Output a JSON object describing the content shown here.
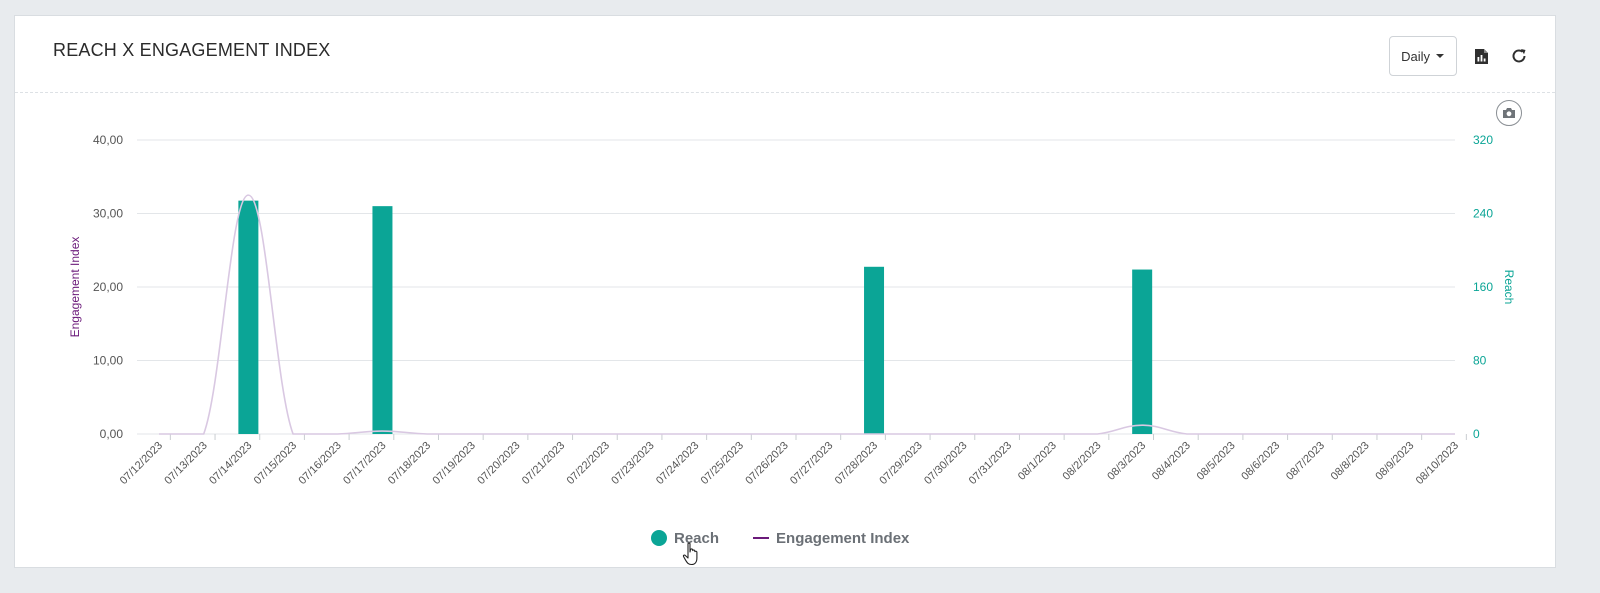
{
  "card": {
    "title": "REACH X ENGAGEMENT INDEX",
    "period_select": {
      "value": "Daily"
    },
    "icons": [
      "pdf-export-icon",
      "refresh-icon",
      "camera-icon"
    ]
  },
  "colors": {
    "reach": "#0ba596",
    "engagement": "#6b1a7a",
    "engagement_line": "#d9c8e2",
    "grid": "#e3e6e9",
    "tick_text": "#555555"
  },
  "chart_data": {
    "type": "bar",
    "categories": [
      "07/12/2023",
      "07/13/2023",
      "07/14/2023",
      "07/15/2023",
      "07/16/2023",
      "07/17/2023",
      "07/18/2023",
      "07/19/2023",
      "07/20/2023",
      "07/21/2023",
      "07/22/2023",
      "07/23/2023",
      "07/24/2023",
      "07/25/2023",
      "07/26/2023",
      "07/27/2023",
      "07/28/2023",
      "07/29/2023",
      "07/30/2023",
      "07/31/2023",
      "08/1/2023",
      "08/2/2023",
      "08/3/2023",
      "08/4/2023",
      "08/5/2023",
      "08/6/2023",
      "08/7/2023",
      "08/8/2023",
      "08/9/2023",
      "08/10/2023"
    ],
    "series": [
      {
        "name": "Reach",
        "type": "bar",
        "axis": "right",
        "values": [
          0,
          0,
          254,
          0,
          0,
          248,
          0,
          0,
          0,
          0,
          0,
          0,
          0,
          0,
          0,
          0,
          182,
          0,
          0,
          0,
          0,
          0,
          179,
          0,
          0,
          0,
          0,
          0,
          0,
          0
        ]
      },
      {
        "name": "Engagement Index",
        "type": "line",
        "axis": "left",
        "values": [
          0,
          0,
          32.5,
          0,
          0,
          0.4,
          0,
          0,
          0,
          0,
          0,
          0,
          0,
          0,
          0,
          0,
          0,
          0,
          0,
          0,
          0,
          0,
          1.2,
          0,
          0,
          0,
          0,
          0,
          0,
          0
        ]
      }
    ],
    "y_left": {
      "label": "Engagement Index",
      "ticks": [
        "0,00",
        "10,00",
        "20,00",
        "30,00",
        "40,00"
      ],
      "range": [
        0,
        40
      ]
    },
    "y_right": {
      "label": "Reach",
      "ticks": [
        "0",
        "80",
        "160",
        "240",
        "320"
      ],
      "range": [
        0,
        320
      ]
    },
    "grid": true,
    "legend_position": "bottom-center"
  },
  "legend": {
    "items": [
      {
        "label": "Reach",
        "marker": "dot"
      },
      {
        "label": "Engagement Index",
        "marker": "line"
      }
    ]
  }
}
